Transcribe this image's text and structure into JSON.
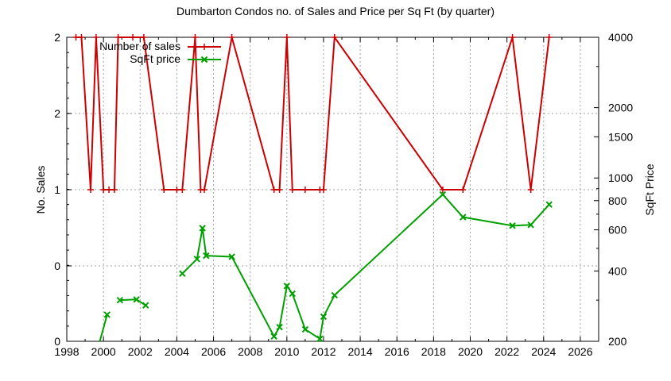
{
  "chart_data": {
    "type": "line",
    "title": "Dumbarton Condos no. of Sales and Price per Sq Ft (by quarter)",
    "xlabel": "",
    "ylabel": "No. Sales",
    "y2label": "SqFt Price",
    "xlim": [
      1998,
      2027
    ],
    "ylim_left_labels": [
      "0",
      "0",
      "1",
      "2",
      "2"
    ],
    "ylim_right": [
      200,
      4000
    ],
    "y2_scale": "log",
    "grid": true,
    "legend_position": "top-left-inside",
    "x_ticks": [
      "1998",
      "2000",
      "2002",
      "2004",
      "2006",
      "2008",
      "2010",
      "2012",
      "2014",
      "2016",
      "2018",
      "2020",
      "2022",
      "2024",
      "2026"
    ],
    "y_left_ticks": [
      "0",
      "0",
      "1",
      "2",
      "2"
    ],
    "y_right_ticks": [
      "200",
      "400",
      "600",
      "800",
      "1000",
      "1500",
      "2000",
      "4000"
    ],
    "series": [
      {
        "name": "Number of sales",
        "color": "#cc0000",
        "axis": "left",
        "x": [
          1998.5,
          1998.8,
          1999.3,
          1999.6,
          2000.0,
          2000.3,
          2000.6,
          2000.8,
          2001.6,
          2002.2,
          2003.3,
          2004.0,
          2004.3,
          2005.0,
          2005.3,
          2005.5,
          2007.0,
          2009.3,
          2009.6,
          2010.0,
          2010.3,
          2011.0,
          2011.8,
          2012.0,
          2012.6,
          2018.5,
          2019.6,
          2022.3,
          2023.3,
          2024.3
        ],
        "values": [
          2,
          2,
          1,
          2,
          1,
          1,
          1,
          2,
          2,
          2,
          1,
          1,
          1,
          2,
          1,
          1,
          2,
          1,
          1,
          2,
          1,
          1,
          1,
          1,
          2,
          1,
          1,
          2,
          1,
          2
        ]
      },
      {
        "name": "SqFt price",
        "color": "#00a000",
        "axis": "right",
        "x": [
          1999.8,
          2000.2,
          2000.9,
          2001.8,
          2002.3,
          2004.3,
          2005.1,
          2005.4,
          2005.6,
          2007.0,
          2009.3,
          2009.6,
          2010.0,
          2010.3,
          2011.0,
          2011.8,
          2012.0,
          2012.6,
          2018.5,
          2019.6,
          2022.3,
          2023.3,
          2024.3
        ],
        "values": [
          200,
          260,
          300,
          302,
          285,
          390,
          450,
          610,
          465,
          460,
          210,
          230,
          345,
          320,
          225,
          205,
          255,
          315,
          850,
          680,
          625,
          630,
          770
        ]
      }
    ]
  },
  "title": "Dumbarton Condos no. of Sales and Price per Sq Ft (by quarter)",
  "axes": {
    "ylabel_left": "No. Sales",
    "ylabel_right": "SqFt Price"
  },
  "legend": {
    "sales_label": "Number of sales",
    "price_label": "SqFt price"
  }
}
